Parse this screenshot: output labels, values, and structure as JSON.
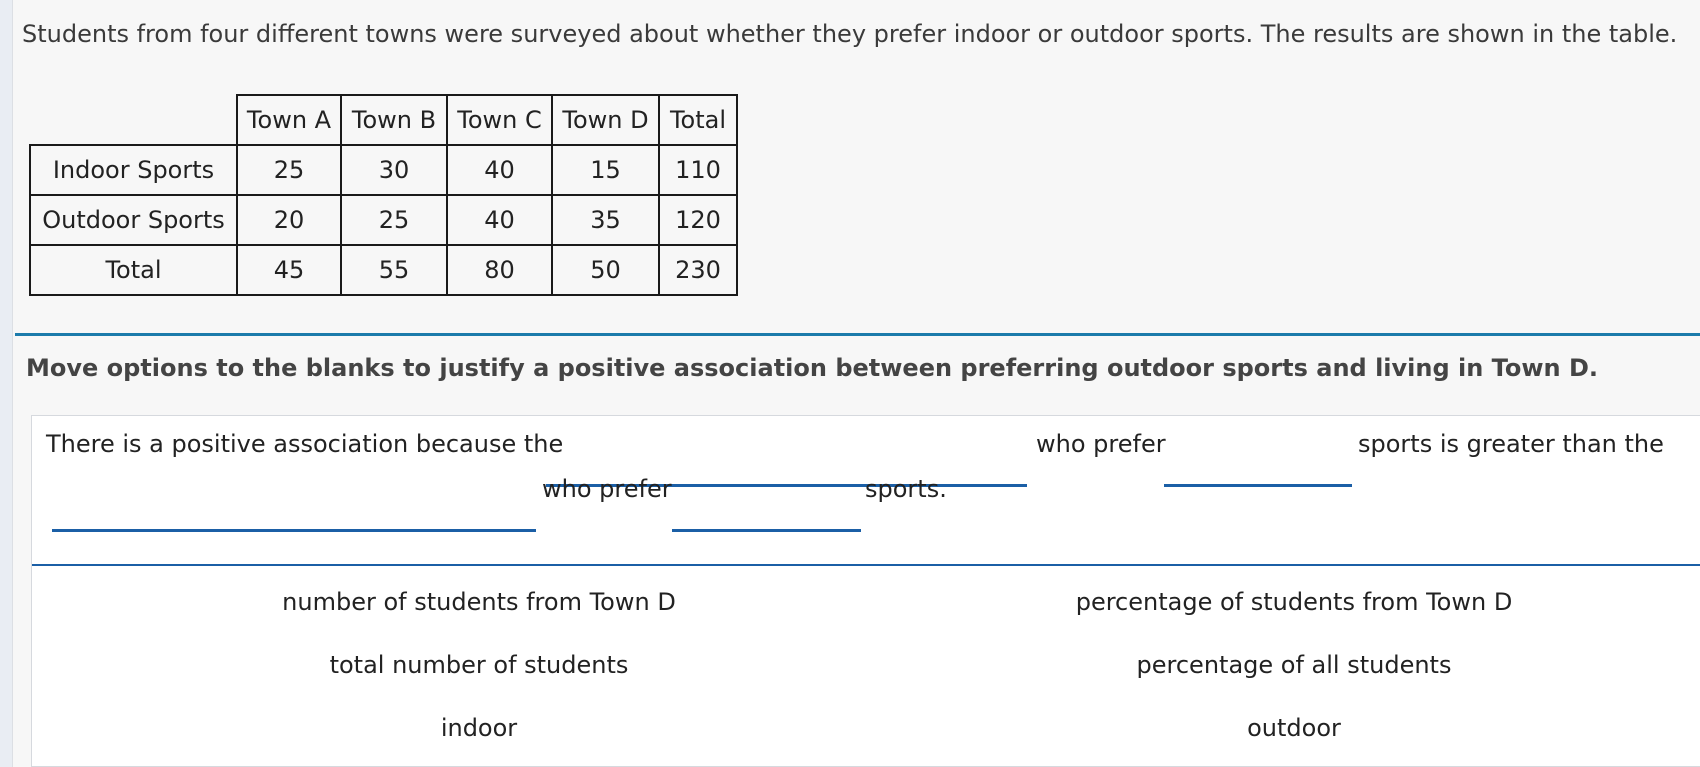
{
  "stem": "Students from four different towns were surveyed about whether they prefer indoor or outdoor sports. The results are shown in the table.",
  "table": {
    "columns": [
      "Town A",
      "Town B",
      "Town C",
      "Town D",
      "Total"
    ],
    "rows": [
      {
        "label": "Indoor Sports",
        "values": [
          "25",
          "30",
          "40",
          "15",
          "110"
        ]
      },
      {
        "label": "Outdoor Sports",
        "values": [
          "20",
          "25",
          "40",
          "35",
          "120"
        ]
      },
      {
        "label": "Total",
        "values": [
          "45",
          "55",
          "80",
          "50",
          "230"
        ]
      }
    ]
  },
  "instruction": "Move options to the blanks to justify a positive association between preferring outdoor sports and living in Town D.",
  "sentence": {
    "part1": "There is a positive association because the",
    "part2": "who prefer",
    "part3": "sports is greater than the",
    "part4": "who prefer",
    "part5": "sports."
  },
  "options": {
    "opt1": "number of students from Town D",
    "opt2": "percentage of students from Town D",
    "opt3": "total number of students",
    "opt4": "percentage of all students",
    "opt5": "indoor",
    "opt6": "outdoor"
  },
  "colors": {
    "accent": "#1c7bab",
    "blank": "#1b5fa6",
    "background": "#f7f7f7"
  }
}
